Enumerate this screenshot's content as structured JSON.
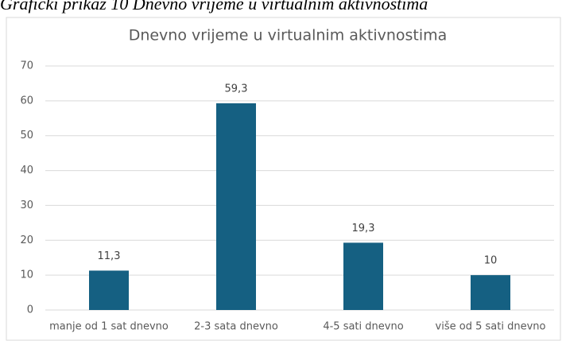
{
  "caption": "Grafički prikaz 10 Dnevno vrijeme u virtualnim aktivnostima",
  "chart_data": {
    "type": "bar",
    "title": "Dnevno vrijeme u virtualnim aktivnostima",
    "categories": [
      "manje od 1 sat dnevno",
      "2-3 sata dnevno",
      "4-5 sati dnevno",
      "više od 5 sati dnevno"
    ],
    "values": [
      11.3,
      59.3,
      19.3,
      10
    ],
    "value_labels": [
      "11,3",
      "59,3",
      "19,3",
      "10"
    ],
    "color": "#156082",
    "ylim": [
      0,
      70
    ],
    "yticks": [
      0,
      10,
      20,
      30,
      40,
      50,
      60,
      70
    ],
    "grid": true
  }
}
